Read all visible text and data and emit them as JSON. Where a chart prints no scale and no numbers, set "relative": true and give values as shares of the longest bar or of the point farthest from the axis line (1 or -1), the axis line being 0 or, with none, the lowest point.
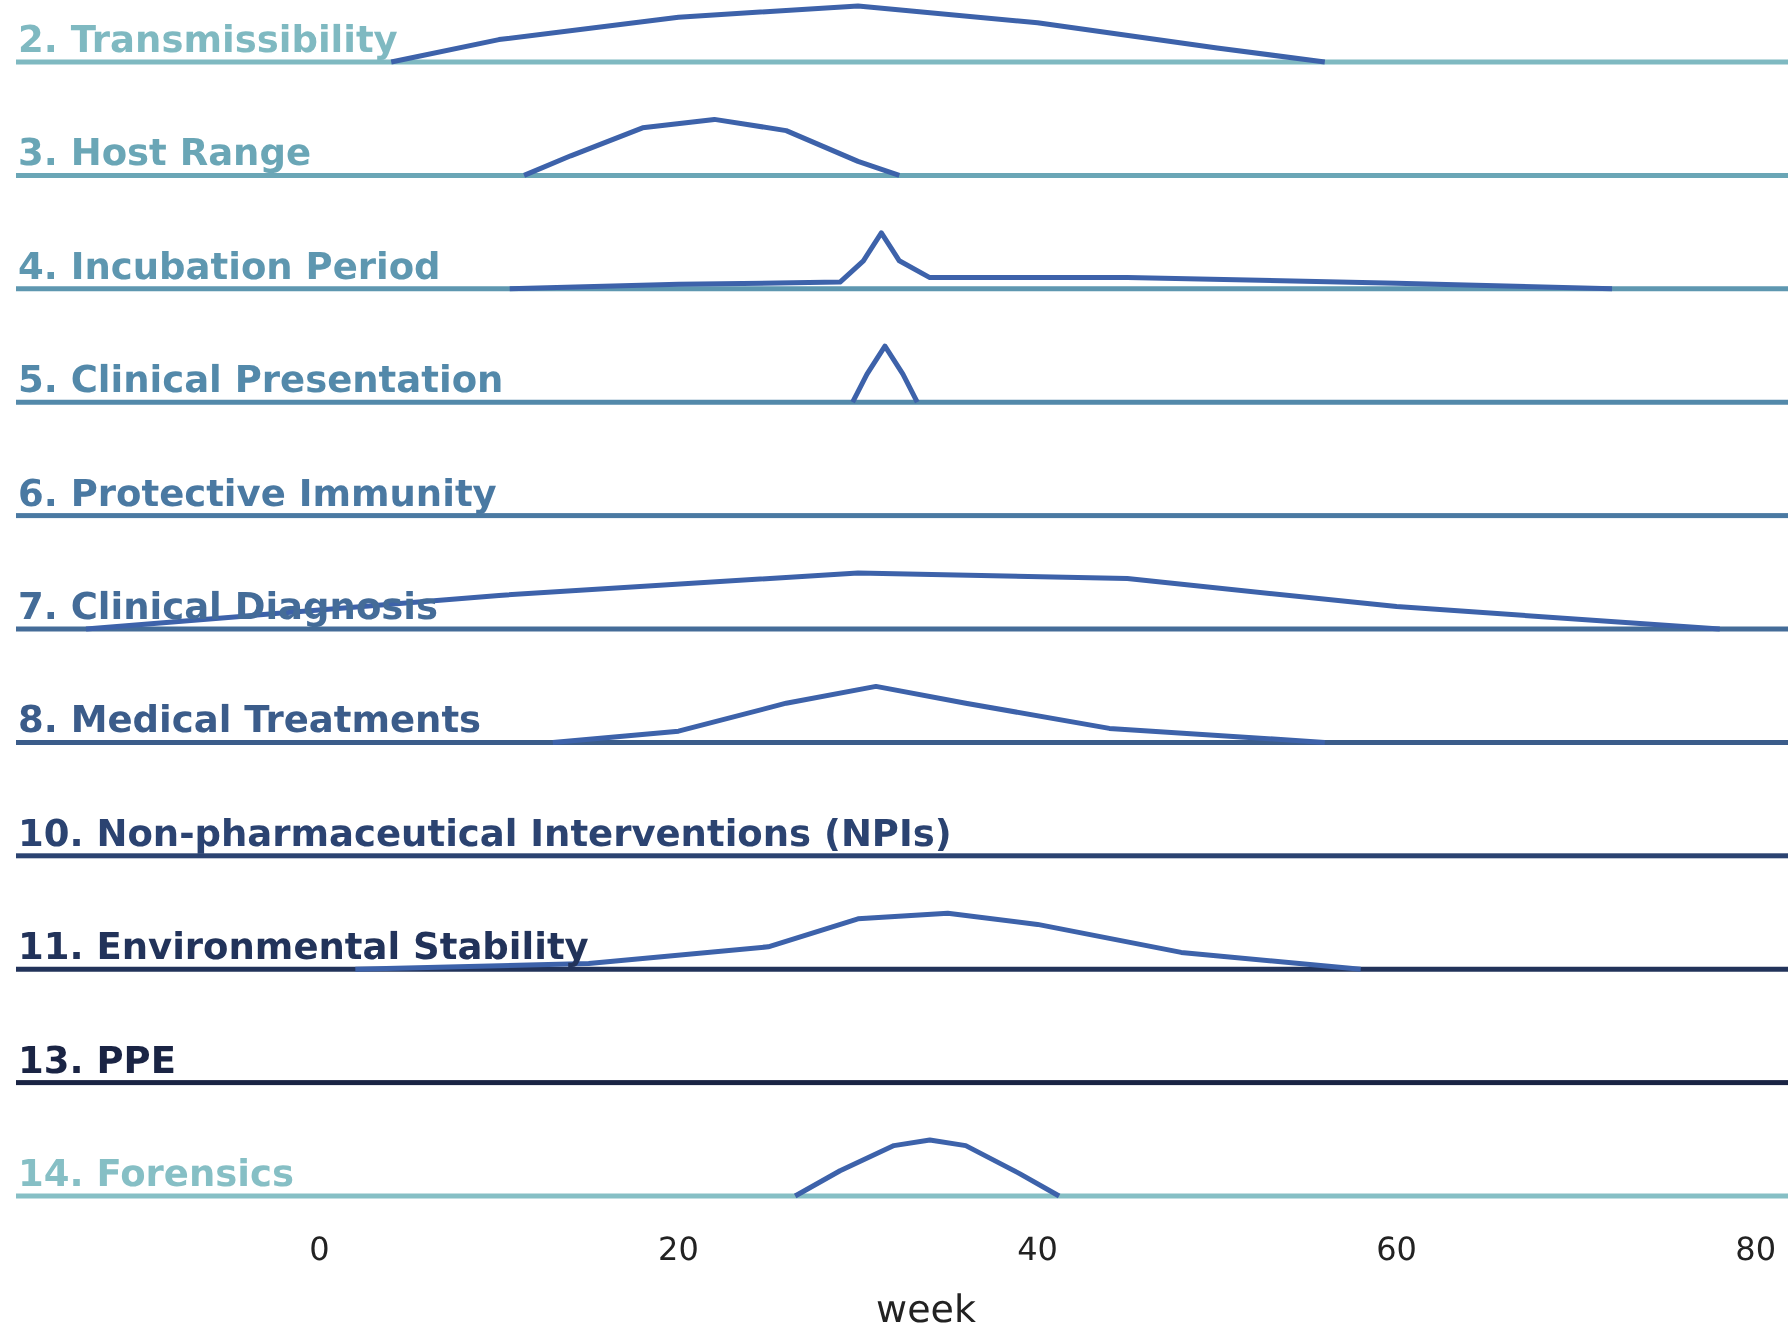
{
  "chart_data": [
    {
      "type": "line",
      "title": "2. Transmissibility",
      "relative": true,
      "xlim": [
        -16.9,
        81.8
      ],
      "tick_labels": false,
      "series": [
        {
          "color": "#7fb9c1",
          "x": [
            -16.9,
            81.8
          ],
          "values": [
            0,
            0
          ]
        },
        {
          "color": "#3d62aa",
          "x": [
            4,
            10,
            20,
            30,
            40,
            50,
            56
          ],
          "values": [
            0,
            0.4,
            0.8,
            1,
            0.7,
            0.25,
            0
          ]
        }
      ]
    },
    {
      "type": "line",
      "title": "3. Host Range",
      "relative": true,
      "xlim": [
        -16.9,
        81.8
      ],
      "tick_labels": false,
      "series": [
        {
          "color": "#6aa6b6",
          "x": [
            -16.9,
            81.8
          ],
          "values": [
            0,
            0
          ]
        },
        {
          "color": "#3d62aa",
          "x": [
            11.4,
            14,
            18,
            22,
            26,
            30,
            32.3
          ],
          "values": [
            0,
            0.35,
            0.85,
            1,
            0.8,
            0.25,
            0
          ]
        }
      ]
    },
    {
      "type": "line",
      "title": "4. Incubation Period",
      "relative": true,
      "xlim": [
        -16.9,
        81.8
      ],
      "tick_labels": false,
      "series": [
        {
          "color": "#5e97b0",
          "x": [
            -16.9,
            81.8
          ],
          "values": [
            0,
            0
          ]
        },
        {
          "color": "#3d62aa",
          "x": [
            10.6,
            20,
            29,
            30.3,
            31.3,
            32.3,
            34,
            45,
            60,
            72
          ],
          "values": [
            0,
            0.08,
            0.12,
            0.5,
            1,
            0.5,
            0.2,
            0.2,
            0.1,
            0
          ]
        }
      ]
    },
    {
      "type": "line",
      "title": "5. Clinical Presentation",
      "relative": true,
      "xlim": [
        -16.9,
        81.8
      ],
      "tick_labels": false,
      "series": [
        {
          "color": "#5389aa",
          "x": [
            -16.9,
            81.8
          ],
          "values": [
            0,
            0
          ]
        },
        {
          "color": "#3d62aa",
          "x": [
            29.7,
            30.5,
            31.5,
            32.5,
            33.3
          ],
          "values": [
            0,
            0.5,
            1,
            0.5,
            0
          ]
        }
      ]
    },
    {
      "type": "other",
      "title": "6. Protective Immunity",
      "color": "#4a79a2"
    },
    {
      "type": "line",
      "title": "7. Clinical Diagnosis",
      "relative": true,
      "xlim": [
        -16.9,
        81.8
      ],
      "tick_labels": false,
      "series": [
        {
          "color": "#446c98",
          "x": [
            -16.9,
            81.8
          ],
          "values": [
            0,
            0
          ]
        },
        {
          "color": "#3d62aa",
          "x": [
            -13,
            10,
            30,
            45,
            60,
            78
          ],
          "values": [
            0,
            0.6,
            1,
            0.9,
            0.4,
            0
          ]
        }
      ]
    },
    {
      "type": "line",
      "title": "8. Medical Treatments",
      "relative": true,
      "xlim": [
        -16.9,
        81.8
      ],
      "tick_labels": false,
      "series": [
        {
          "color": "#3b5c8a",
          "x": [
            -16.9,
            81.8
          ],
          "values": [
            0,
            0
          ]
        },
        {
          "color": "#3d62aa",
          "x": [
            13,
            20,
            26,
            31,
            36,
            44,
            56
          ],
          "values": [
            0,
            0.2,
            0.7,
            1,
            0.7,
            0.25,
            0
          ]
        }
      ]
    },
    {
      "type": "other",
      "title": "10. Non-pharmaceutical Interventions (NPIs)",
      "color": "#2b4371"
    },
    {
      "type": "line",
      "title": "11. Environmental Stability",
      "relative": true,
      "xlim": [
        -16.9,
        81.8
      ],
      "tick_labels": false,
      "series": [
        {
          "color": "#22335a",
          "x": [
            -16.9,
            81.8
          ],
          "values": [
            0,
            0
          ]
        },
        {
          "color": "#3d62aa",
          "x": [
            2,
            15,
            25,
            30,
            35,
            40,
            48,
            58
          ],
          "values": [
            0,
            0.1,
            0.4,
            0.9,
            1,
            0.8,
            0.3,
            0
          ]
        }
      ]
    },
    {
      "type": "other",
      "title": "13. PPE",
      "color": "#1a2444"
    },
    {
      "type": "line",
      "title": "14. Forensics",
      "xlabel": "week",
      "relative": true,
      "xlim": [
        -16.9,
        81.8
      ],
      "xticks": [
        0,
        20,
        40,
        60,
        80
      ],
      "tick_labels": "x",
      "series": [
        {
          "color": "#86bfc5",
          "x": [
            -16.9,
            81.8
          ],
          "values": [
            0,
            0
          ]
        },
        {
          "color": "#3d62aa",
          "x": [
            26.5,
            29,
            32,
            34,
            36,
            39,
            41.2
          ],
          "values": [
            0,
            0.45,
            0.9,
            1,
            0.9,
            0.4,
            0
          ]
        }
      ]
    }
  ]
}
